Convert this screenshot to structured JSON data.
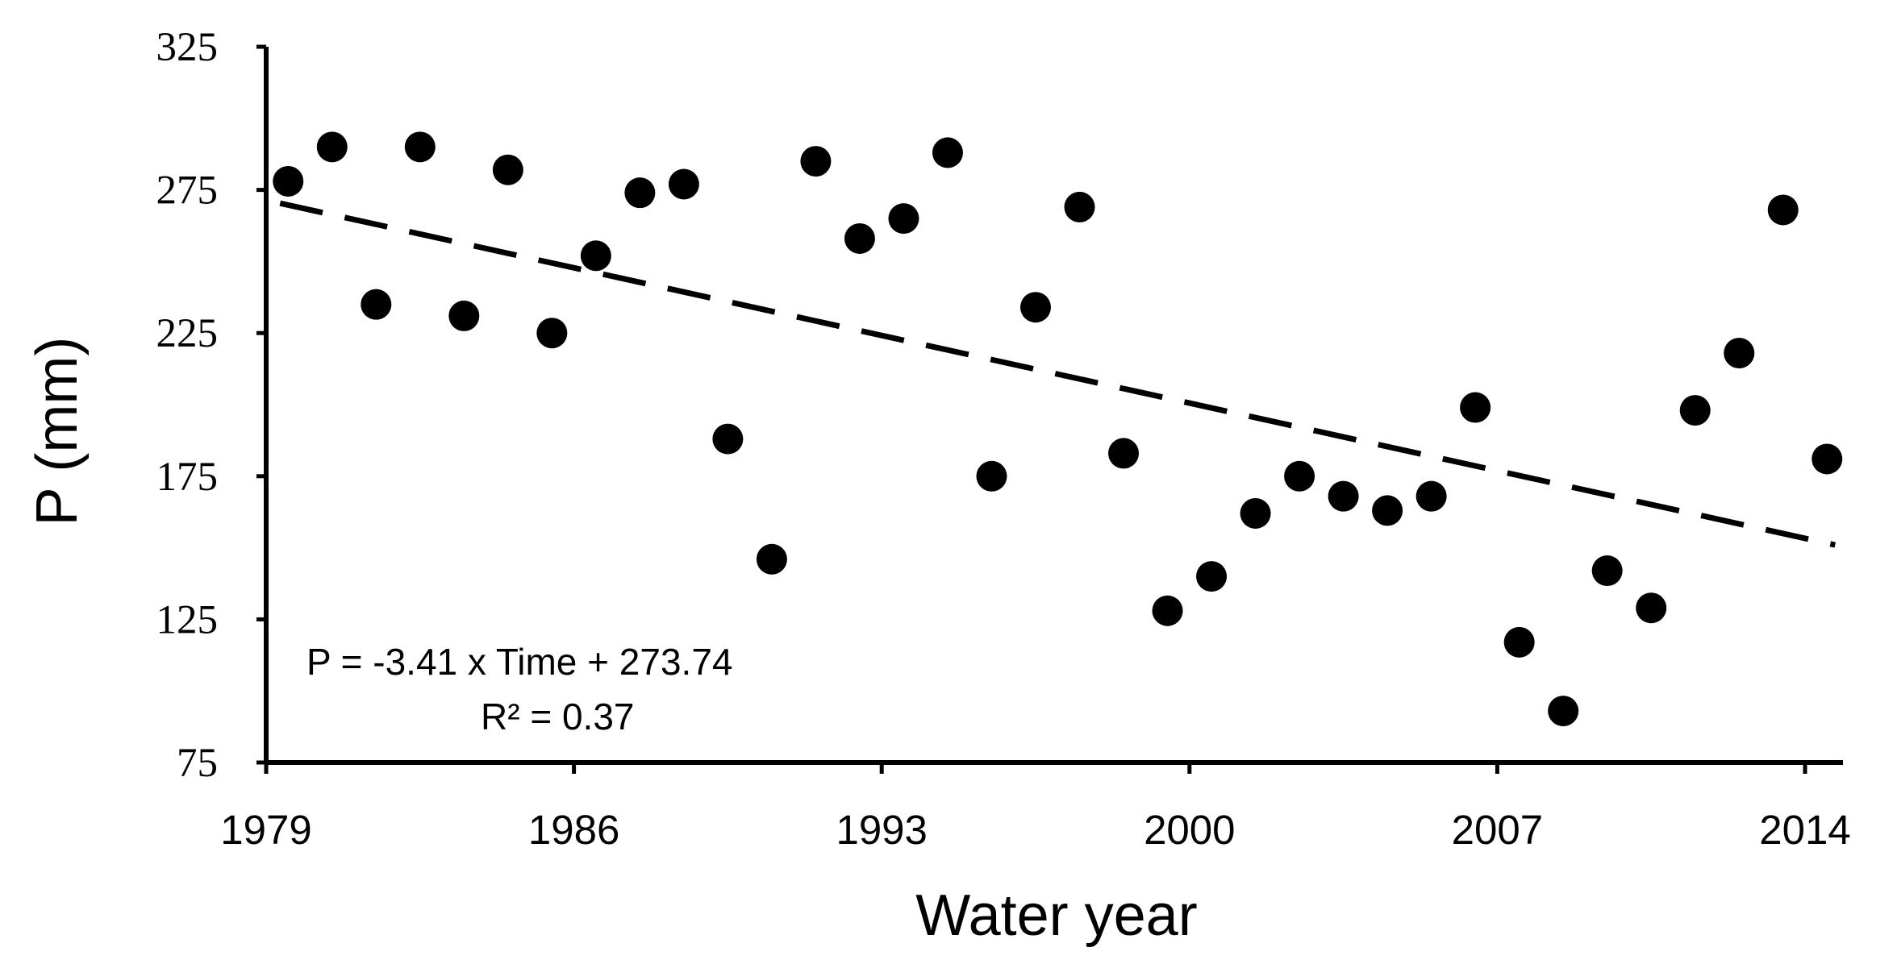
{
  "chart_data": {
    "type": "scatter",
    "title": "",
    "xlabel": "Water year",
    "ylabel": "P (mm)",
    "xlim": [
      1979,
      2015
    ],
    "ylim": [
      75,
      325
    ],
    "xticks": [
      1979,
      1986,
      1993,
      2000,
      2007,
      2014
    ],
    "xtick_labels": [
      "1979",
      "1986",
      "1993",
      "2000",
      "2007",
      "2014"
    ],
    "yticks": [
      75,
      125,
      175,
      225,
      275,
      325
    ],
    "ytick_labels": [
      "75",
      "125",
      "175",
      "225",
      "275",
      "325"
    ],
    "grid": false,
    "series": [
      {
        "name": "P",
        "x": [
          1979.5,
          1980.5,
          1981.5,
          1982.5,
          1983.5,
          1984.5,
          1985.5,
          1986.5,
          1987.5,
          1988.5,
          1989.5,
          1990.5,
          1991.5,
          1992.5,
          1993.5,
          1994.5,
          1995.5,
          1996.5,
          1997.5,
          1998.5,
          1999.5,
          2000.5,
          2001.5,
          2002.5,
          2003.5,
          2004.5,
          2005.5,
          2006.5,
          2007.5,
          2008.5,
          2009.5,
          2010.5,
          2011.5,
          2012.5,
          2013.5,
          2014.5
        ],
        "y": [
          278,
          290,
          235,
          290,
          231,
          282,
          225,
          252,
          274,
          277,
          188,
          146,
          285,
          258,
          265,
          288,
          175,
          234,
          269,
          183,
          128,
          140,
          162,
          175,
          168,
          163,
          168,
          199,
          117,
          93,
          142,
          129,
          198,
          218,
          268,
          181
        ]
      }
    ],
    "trendline": {
      "type": "linear",
      "style": "dashed",
      "slope": -3.41,
      "intercept": 273.74,
      "x_origin": 1978.5
    },
    "annotations": [
      "P = -3.41 x Time + 273.74",
      "R² = 0.37"
    ]
  }
}
